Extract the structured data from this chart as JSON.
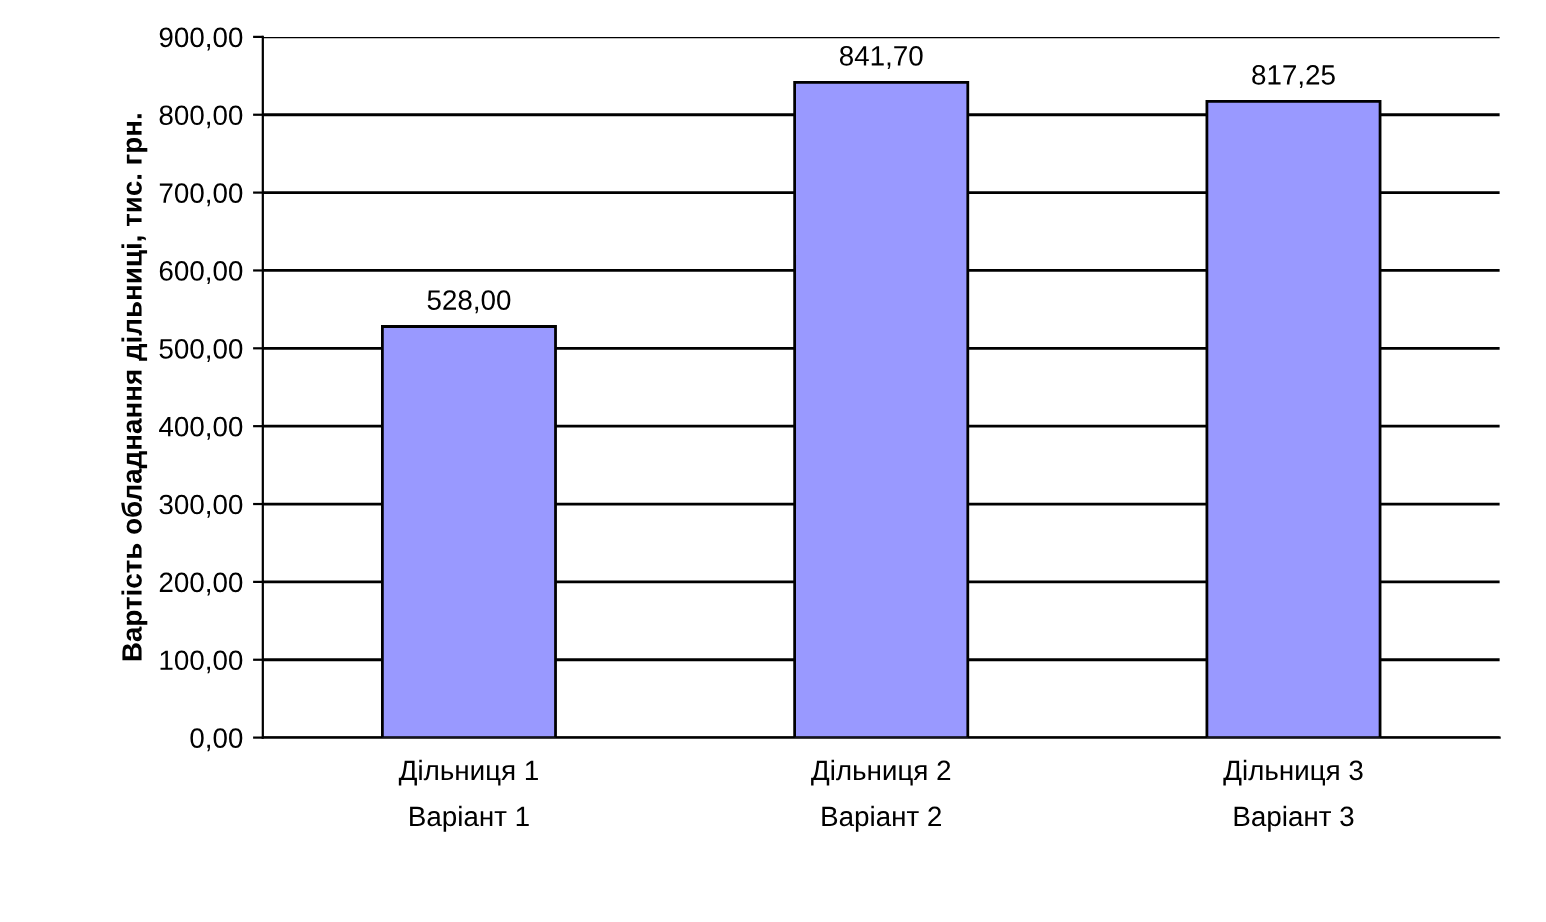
{
  "chart_data": {
    "type": "bar",
    "ylabel": "Вартість обладнання дільниці, тис. грн.",
    "categories": [
      "Дільниця 1\nВаріант 1",
      "Дільниця 2\nВаріант 2",
      "Дільниця 3\nВаріант 3"
    ],
    "values": [
      528.0,
      841.7,
      817.25
    ],
    "color": "#9999ff",
    "value_labels": [
      "528,00",
      "841,70",
      "817,25"
    ],
    "ylim": [
      0,
      900
    ],
    "yticks": [
      {
        "value": 0,
        "label": "0,00"
      },
      {
        "value": 100,
        "label": "100,00"
      },
      {
        "value": 200,
        "label": "200,00"
      },
      {
        "value": 300,
        "label": "300,00"
      },
      {
        "value": 400,
        "label": "400,00"
      },
      {
        "value": 500,
        "label": "500,00"
      },
      {
        "value": 600,
        "label": "600,00"
      },
      {
        "value": 700,
        "label": "700,00"
      },
      {
        "value": 800,
        "label": "800,00"
      },
      {
        "value": 900,
        "label": "900,00"
      }
    ],
    "grid": "y"
  }
}
